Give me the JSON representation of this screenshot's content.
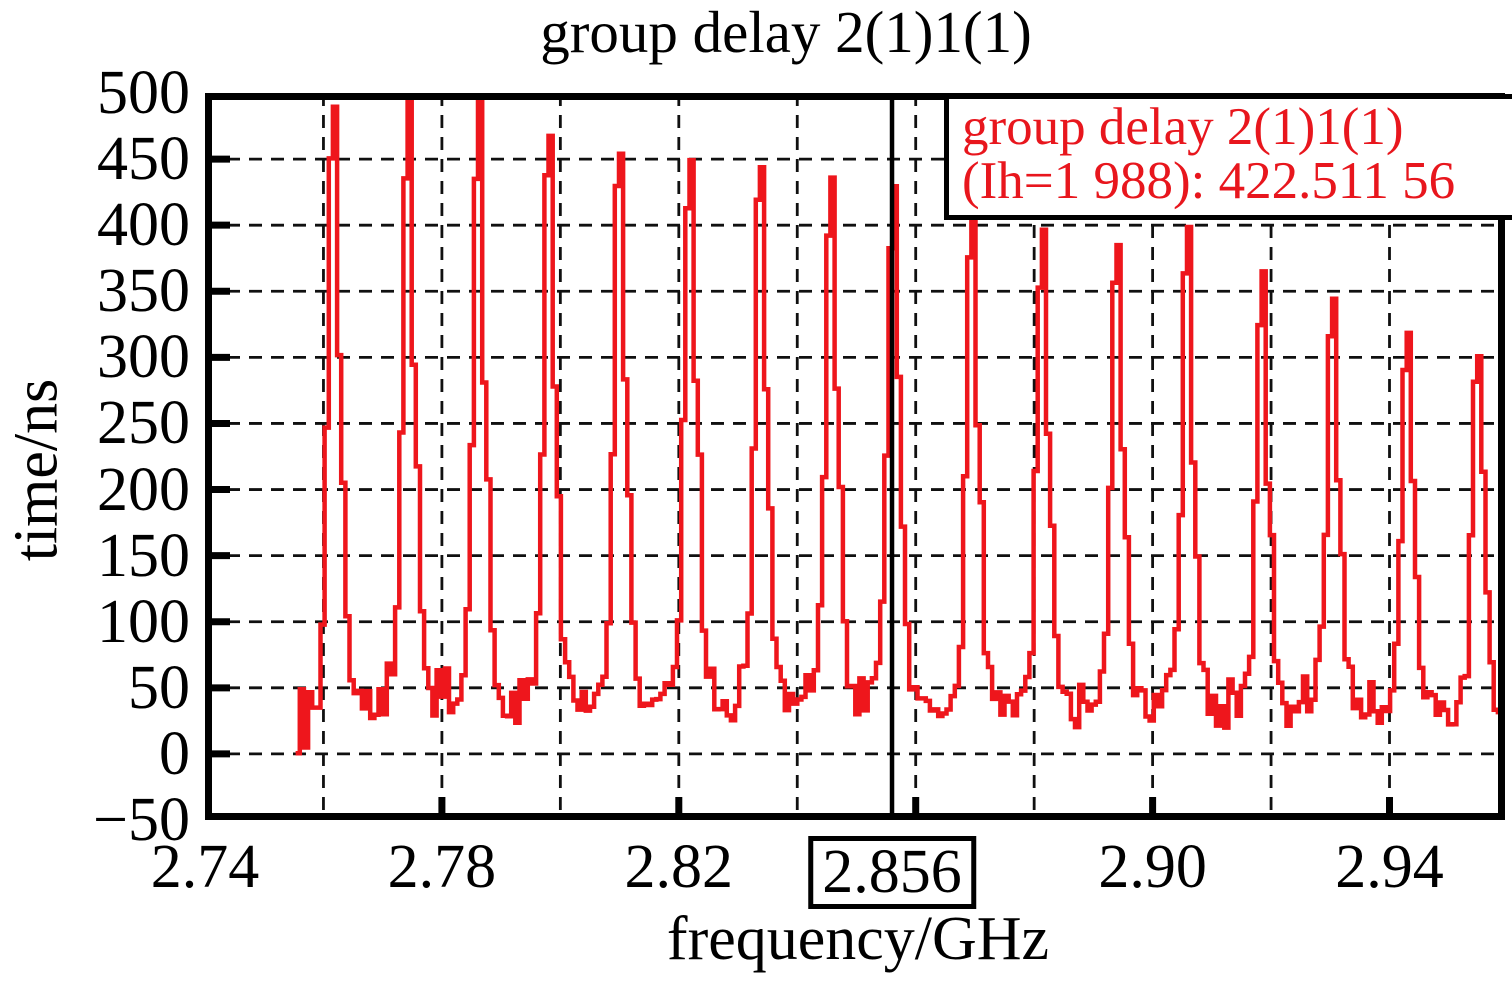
{
  "title": "group delay 2(1)1(1)",
  "legend": {
    "line1": "group delay 2(1)1(1)",
    "line2": "(Ih=1 988): 422.511 56",
    "text_color": "#e8161d",
    "border_color": "#000000",
    "position": "top-right"
  },
  "marker": {
    "label": "2.856",
    "frequency_ghz": 2.856,
    "reading_ns": "422.511 56",
    "line_color": "#000000"
  },
  "axes": {
    "x": {
      "label": "frequency/GHz",
      "min": 2.74,
      "max": 2.9595,
      "tick_labels": [
        "2.74",
        "2.78",
        "2.82",
        "2.90",
        "2.94"
      ],
      "tick_values": [
        2.74,
        2.78,
        2.82,
        2.9,
        2.94
      ],
      "tick_mark_values": [
        2.78,
        2.82,
        2.86,
        2.9,
        2.94
      ],
      "gridline_step": 0.02
    },
    "y": {
      "label": "time/ns",
      "min": -50,
      "max": 500,
      "tick_labels": [
        "500",
        "450",
        "400",
        "350",
        "300",
        "250",
        "200",
        "150",
        "100",
        "50",
        "0",
        "−50"
      ],
      "tick_values": [
        500,
        450,
        400,
        350,
        300,
        250,
        200,
        150,
        100,
        50,
        0,
        -50
      ],
      "gridline_step": 50
    }
  },
  "chart_data": {
    "type": "line",
    "title": "group delay 2(1)1(1)",
    "xlabel": "frequency/GHz",
    "ylabel": "time/ns",
    "x_range": [
      2.74,
      2.9595
    ],
    "y_range": [
      -50,
      500
    ],
    "grid": "dashed",
    "legend_position": "top-right",
    "series_name": "group delay 2(1)1(1)",
    "line_color": "#ee161c",
    "data_start_ghz": 2.7553,
    "baseline_ns": {
      "typical_min": 8,
      "typical_max": 55,
      "start_burst_min": -22
    },
    "peaks": [
      {
        "f_ghz": 2.7617,
        "t_ns": 499
      },
      {
        "f_ghz": 2.7739,
        "t_ns": 491
      },
      {
        "f_ghz": 2.7858,
        "t_ns": 485
      },
      {
        "f_ghz": 2.7978,
        "t_ns": 469
      },
      {
        "f_ghz": 2.8097,
        "t_ns": 467
      },
      {
        "f_ghz": 2.8216,
        "t_ns": 459
      },
      {
        "f_ghz": 2.8336,
        "t_ns": 449
      },
      {
        "f_ghz": 2.8457,
        "t_ns": 437
      },
      {
        "f_ghz": 2.856,
        "t_ns": 422.5
      },
      {
        "f_ghz": 2.8694,
        "t_ns": 413
      },
      {
        "f_ghz": 2.8815,
        "t_ns": 399
      },
      {
        "f_ghz": 2.8938,
        "t_ns": 388
      },
      {
        "f_ghz": 2.9061,
        "t_ns": 371
      },
      {
        "f_ghz": 2.9184,
        "t_ns": 355
      },
      {
        "f_ghz": 2.9306,
        "t_ns": 342
      },
      {
        "f_ghz": 2.9429,
        "t_ns": 331
      },
      {
        "f_ghz": 2.9549,
        "t_ns": 306
      }
    ],
    "marker_readout": {
      "f_ghz": 2.856,
      "t_ns": 422.51156
    }
  }
}
